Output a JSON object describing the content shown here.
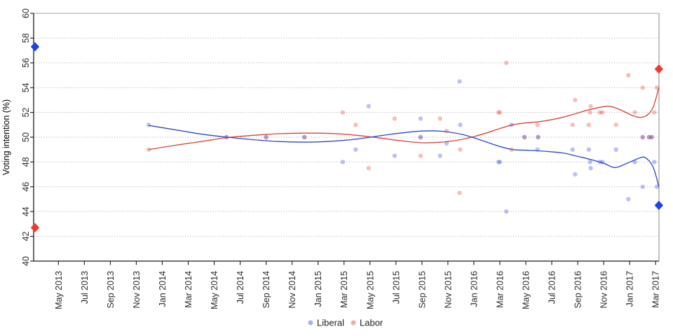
{
  "chart_data": {
    "type": "scatter",
    "title": "",
    "xlabel": "",
    "ylabel": "Voting intention (%)",
    "ylim": [
      40,
      60
    ],
    "y_ticks": [
      40,
      42,
      44,
      46,
      48,
      50,
      52,
      54,
      56,
      58,
      60
    ],
    "x_tick_labels": [
      "May 2013",
      "Jul 2013",
      "Sep 2013",
      "Nov 2013",
      "Jan 2014",
      "Mar 2014",
      "May 2014",
      "Jul 2014",
      "Sep 2014",
      "Nov 2014",
      "Jan 2015",
      "Mar 2015",
      "May 2015",
      "Jul 2015",
      "Sep 2015",
      "Nov 2015",
      "Jan 2016",
      "Mar 2016",
      "May 2016",
      "Jul 2016",
      "Sep 2016",
      "Nov 2016",
      "Jan 2017",
      "Mar 2017"
    ],
    "grid": "horizontal-dotted",
    "legend": {
      "position": "bottom-center",
      "entries": [
        {
          "label": "Liberal",
          "color": "#3b50e6"
        },
        {
          "label": "Labor",
          "color": "#e8493c"
        }
      ]
    },
    "colors": {
      "liberal_line": "#2c49cc",
      "labor_line": "#d84339",
      "liberal_dot": "#3b50e6",
      "labor_dot": "#e8493c",
      "liberal_diamond": "#2041ef",
      "labor_diamond": "#f23a2a",
      "axis": "#1a1a1a",
      "grid": "#999999",
      "border": "#c0c0c0",
      "tick_text": "#2b2b2b"
    },
    "polls": [
      {
        "date": "Dec 2013",
        "t": 6.95,
        "liberal": 51,
        "labor": 49
      },
      {
        "date": "Jun 2014",
        "t": 12.95,
        "liberal": 50,
        "labor": 50
      },
      {
        "date": "Sep 2014",
        "t": 16.0,
        "liberal": 50,
        "labor": 50
      },
      {
        "date": "Dec 2014",
        "t": 18.95,
        "liberal": 50,
        "labor": 50
      },
      {
        "date": "Mar 2015",
        "t": 21.9,
        "liberal": 48,
        "labor": 52
      },
      {
        "date": "Apr 2015",
        "t": 22.9,
        "liberal": 49,
        "labor": 51
      },
      {
        "date": "May 2015",
        "t": 23.9,
        "liberal": 52.5,
        "labor": 47.5
      },
      {
        "date": "Jul 2015",
        "t": 25.9,
        "liberal": 48.5,
        "labor": 51.5
      },
      {
        "date": "Sep 2015",
        "t": 27.9,
        "liberal": 50,
        "labor": 50
      },
      {
        "date": "Sep 2015",
        "t": 27.9,
        "liberal": 51.5,
        "labor": 48.5
      },
      {
        "date": "Oct 2015",
        "t": 29.4,
        "liberal": 48.5,
        "labor": 51.5
      },
      {
        "date": "Nov 2015",
        "t": 29.9,
        "liberal": 49.5,
        "labor": 50.5
      },
      {
        "date": "Dec 2015",
        "t": 30.9,
        "liberal": 54.5,
        "labor": 45.5
      },
      {
        "date": "Dec 2015",
        "t": 30.95,
        "liberal": 51,
        "labor": 49
      },
      {
        "date": "Mar 2016",
        "t": 33.9,
        "liberal": 48,
        "labor": 52
      },
      {
        "date": "Mar 2016",
        "t": 34.0,
        "liberal": 48,
        "labor": 52
      },
      {
        "date": "Apr 2016",
        "t": 34.5,
        "liberal": 44,
        "labor": 56
      },
      {
        "date": "Apr 2016",
        "t": 34.9,
        "liberal": 51,
        "labor": 49
      },
      {
        "date": "May 2016",
        "t": 35.9,
        "liberal": 50,
        "labor": 50
      },
      {
        "date": "Jun 2016",
        "t": 36.9,
        "liberal": 49,
        "labor": 51
      },
      {
        "date": "Jun 2016",
        "t": 36.95,
        "liberal": 50,
        "labor": 50
      },
      {
        "date": "Sep 2016",
        "t": 39.6,
        "liberal": 49,
        "labor": 51
      },
      {
        "date": "Sep 2016",
        "t": 39.8,
        "liberal": 47,
        "labor": 53
      },
      {
        "date": "Oct 2016",
        "t": 40.85,
        "liberal": 49,
        "labor": 51
      },
      {
        "date": "Oct 2016",
        "t": 40.95,
        "liberal": 48,
        "labor": 52
      },
      {
        "date": "Oct 2016",
        "t": 41.0,
        "liberal": 47.5,
        "labor": 52.5
      },
      {
        "date": "Nov 2016",
        "t": 41.7,
        "liberal": 48,
        "labor": 52
      },
      {
        "date": "Nov 2016",
        "t": 41.9,
        "liberal": 48,
        "labor": 52
      },
      {
        "date": "Dec 2016",
        "t": 42.95,
        "liberal": 49,
        "labor": 51
      },
      {
        "date": "Jan 2017",
        "t": 43.9,
        "liberal": 45,
        "labor": 55
      },
      {
        "date": "Jan 2017",
        "t": 44.4,
        "liberal": 48,
        "labor": 52
      },
      {
        "date": "Feb 2017",
        "t": 45.0,
        "liberal": 46,
        "labor": 54
      },
      {
        "date": "Feb 2017",
        "t": 45.0,
        "liberal": 50,
        "labor": 50
      },
      {
        "date": "Feb 2017",
        "t": 45.5,
        "liberal": 50,
        "labor": 50
      },
      {
        "date": "Mar 2017",
        "t": 45.7,
        "liberal": 50,
        "labor": 50
      },
      {
        "date": "Mar 2017",
        "t": 45.9,
        "liberal": 48,
        "labor": 52
      },
      {
        "date": "Mar 2017",
        "t": 46.1,
        "liberal": 46,
        "labor": 54
      }
    ],
    "diamond_markers": [
      {
        "series": "Liberal",
        "t": -1.8,
        "value": 57.3
      },
      {
        "series": "Labor",
        "t": -1.8,
        "value": 42.7
      },
      {
        "series": "Labor",
        "t": 46.25,
        "value": 55.5
      },
      {
        "series": "Liberal",
        "t": 46.25,
        "value": 44.5
      }
    ],
    "trend": {
      "liberal": [
        [
          6.95,
          50.95
        ],
        [
          9,
          50.6
        ],
        [
          11,
          50.25
        ],
        [
          13,
          50.0
        ],
        [
          15,
          49.8
        ],
        [
          17,
          49.65
        ],
        [
          19,
          49.6
        ],
        [
          21,
          49.67
        ],
        [
          23,
          49.85
        ],
        [
          25,
          50.15
        ],
        [
          26.5,
          50.35
        ],
        [
          28,
          50.5
        ],
        [
          29.5,
          50.48
        ],
        [
          31,
          50.25
        ],
        [
          32,
          49.95
        ],
        [
          33,
          49.6
        ],
        [
          34,
          49.25
        ],
        [
          35,
          49.0
        ],
        [
          36,
          48.95
        ],
        [
          37,
          48.9
        ],
        [
          38,
          48.82
        ],
        [
          39,
          48.7
        ],
        [
          40,
          48.45
        ],
        [
          41,
          48.2
        ],
        [
          42,
          47.9
        ],
        [
          42.85,
          47.55
        ],
        [
          43.7,
          47.85
        ],
        [
          44.7,
          48.3
        ],
        [
          45.2,
          48.35
        ],
        [
          45.8,
          47.6
        ],
        [
          46.25,
          46.0
        ]
      ],
      "labor": [
        [
          6.95,
          49.0
        ],
        [
          9,
          49.35
        ],
        [
          11,
          49.65
        ],
        [
          13,
          49.97
        ],
        [
          15,
          50.15
        ],
        [
          17,
          50.28
        ],
        [
          19,
          50.33
        ],
        [
          21,
          50.3
        ],
        [
          23,
          50.15
        ],
        [
          25,
          49.9
        ],
        [
          26.5,
          49.7
        ],
        [
          28,
          49.55
        ],
        [
          29.5,
          49.6
        ],
        [
          31,
          49.8
        ],
        [
          32,
          50.05
        ],
        [
          33,
          50.35
        ],
        [
          34,
          50.7
        ],
        [
          35,
          51.0
        ],
        [
          36,
          51.15
        ],
        [
          37,
          51.25
        ],
        [
          38,
          51.42
        ],
        [
          39,
          51.65
        ],
        [
          40,
          51.95
        ],
        [
          41,
          52.25
        ],
        [
          42.3,
          52.5
        ],
        [
          43.2,
          52.25
        ],
        [
          44.2,
          51.75
        ],
        [
          44.8,
          51.6
        ],
        [
          45.3,
          51.75
        ],
        [
          45.8,
          52.4
        ],
        [
          46.25,
          54.0
        ]
      ]
    }
  }
}
